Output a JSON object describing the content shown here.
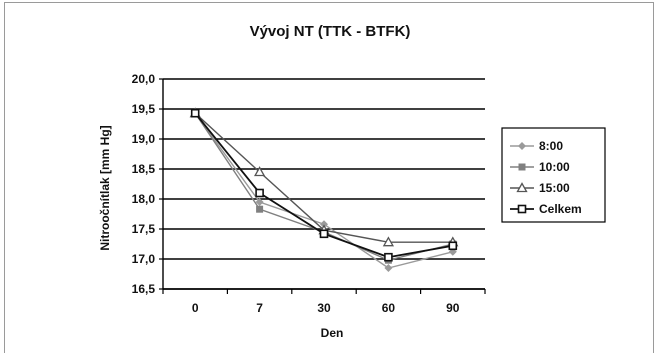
{
  "chart_data": {
    "type": "line",
    "title": "Vývoj NT (TTK - BTFK)",
    "xlabel": "Den",
    "ylabel": "Nitroočnítlak [mm Hg]",
    "categories": [
      "0",
      "7",
      "30",
      "60",
      "90"
    ],
    "ylim": [
      16.5,
      20.0
    ],
    "yticks": [
      "16,5",
      "17,0",
      "17,5",
      "18,0",
      "18,5",
      "19,0",
      "19,5",
      "20,0"
    ],
    "grid": "horizontal",
    "legend_position": "right",
    "series": [
      {
        "name": "8:00",
        "values": [
          19.43,
          17.95,
          17.58,
          16.85,
          17.12
        ],
        "color": "#9a9a9a",
        "marker": "diamond"
      },
      {
        "name": "10:00",
        "values": [
          19.43,
          17.83,
          17.45,
          16.98,
          17.25
        ],
        "color": "#808080",
        "marker": "square"
      },
      {
        "name": "15:00",
        "values": [
          19.43,
          18.45,
          17.48,
          17.28,
          17.28
        ],
        "color": "#555555",
        "marker": "triangle"
      },
      {
        "name": "Celkem",
        "values": [
          19.43,
          18.1,
          17.42,
          17.03,
          17.22
        ],
        "color": "#111111",
        "marker": "square-open"
      }
    ]
  }
}
